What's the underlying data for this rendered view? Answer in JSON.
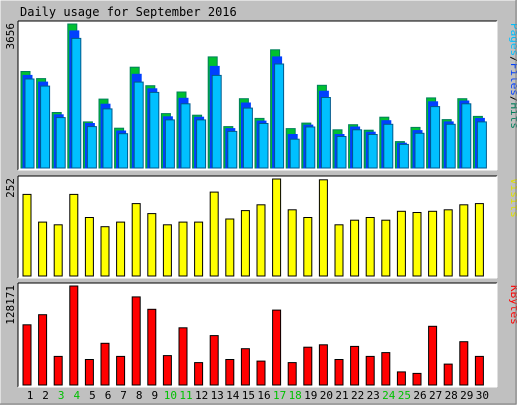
{
  "title": "Daily usage for September 2016",
  "colors": {
    "background": "#c0c0c0",
    "panel": "#ffffff",
    "hits": "#00805c",
    "hits_fill": "#00c030",
    "files": "#0040ff",
    "files_fill": "#0040ff",
    "pages": "#00c0ff",
    "pages_fill": "#00c0ff",
    "visits": "#e0e000",
    "visits_fill": "#ffff00",
    "kbytes": "#ff0000",
    "kbytes_fill": "#ff0000",
    "weekday_label": "#000000",
    "weekend_label": "#00c000"
  },
  "chart_data": {
    "type": "bar",
    "title": "Daily usage for September 2016",
    "categories": [
      "1",
      "2",
      "3",
      "4",
      "5",
      "6",
      "7",
      "8",
      "9",
      "10",
      "11",
      "12",
      "13",
      "14",
      "15",
      "16",
      "17",
      "18",
      "19",
      "20",
      "21",
      "22",
      "23",
      "24",
      "25",
      "26",
      "27",
      "28",
      "29",
      "30"
    ],
    "weekend_days": [
      "3",
      "4",
      "10",
      "11",
      "17",
      "18",
      "24",
      "25"
    ],
    "panels": [
      {
        "name": "hits_files_pages",
        "legend": [
          "Pages",
          "/",
          "Files",
          "/",
          "Hits"
        ],
        "ymax_label": "3656",
        "ylim": [
          0,
          3656
        ],
        "series": [
          {
            "name": "Hits",
            "values": [
              2450,
              2270,
              1410,
              3656,
              1170,
              1750,
              1010,
              2560,
              2090,
              1380,
              1930,
              1340,
              2820,
              1050,
              1760,
              1260,
              3000,
              1000,
              1140,
              2100,
              970,
              1100,
              960,
              1290,
              670,
              1030,
              1780,
              1230,
              1760,
              1310
            ]
          },
          {
            "name": "Files",
            "values": [
              2350,
              2180,
              1350,
              3480,
              1130,
              1620,
              940,
              2380,
              2010,
              1300,
              1770,
              1290,
              2580,
              1000,
              1650,
              1190,
              2820,
              850,
              1090,
              1950,
              850,
              1040,
              910,
              1200,
              630,
              950,
              1680,
              1170,
              1700,
              1260
            ]
          },
          {
            "name": "Pages",
            "values": [
              2260,
              2080,
              1280,
              3290,
              1050,
              1500,
              870,
              2180,
              1920,
              1220,
              1630,
              1220,
              2350,
              930,
              1520,
              1130,
              2640,
              730,
              1040,
              1790,
              800,
              970,
              850,
              1110,
              600,
              880,
              1560,
              1110,
              1630,
              1170
            ]
          }
        ]
      },
      {
        "name": "visits",
        "legend": [
          "Visits"
        ],
        "ymax_label": "252",
        "ylim": [
          0,
          252
        ],
        "series": [
          {
            "name": "Visits",
            "values": [
              212,
              140,
              133,
              212,
              152,
              128,
              140,
              188,
              162,
              133,
              140,
              140,
              218,
              148,
              170,
              185,
              252,
              172,
              152,
              250,
              133,
              145,
              152,
              145,
              168,
              165,
              168,
              172,
              185,
              188
            ]
          }
        ]
      },
      {
        "name": "kbytes",
        "legend": [
          "KBytes"
        ],
        "ymax_label": "128171",
        "ylim": [
          0,
          128171
        ],
        "series": [
          {
            "name": "KBytes",
            "values": [
              78000,
              91000,
              37000,
              128171,
              33000,
              54000,
              37000,
              114000,
              98000,
              38000,
              74000,
              29000,
              64000,
              33000,
              47000,
              31000,
              97000,
              29000,
              49000,
              52000,
              33000,
              50000,
              37000,
              42000,
              17000,
              15000,
              76000,
              27000,
              56000,
              37000
            ]
          }
        ]
      }
    ]
  }
}
